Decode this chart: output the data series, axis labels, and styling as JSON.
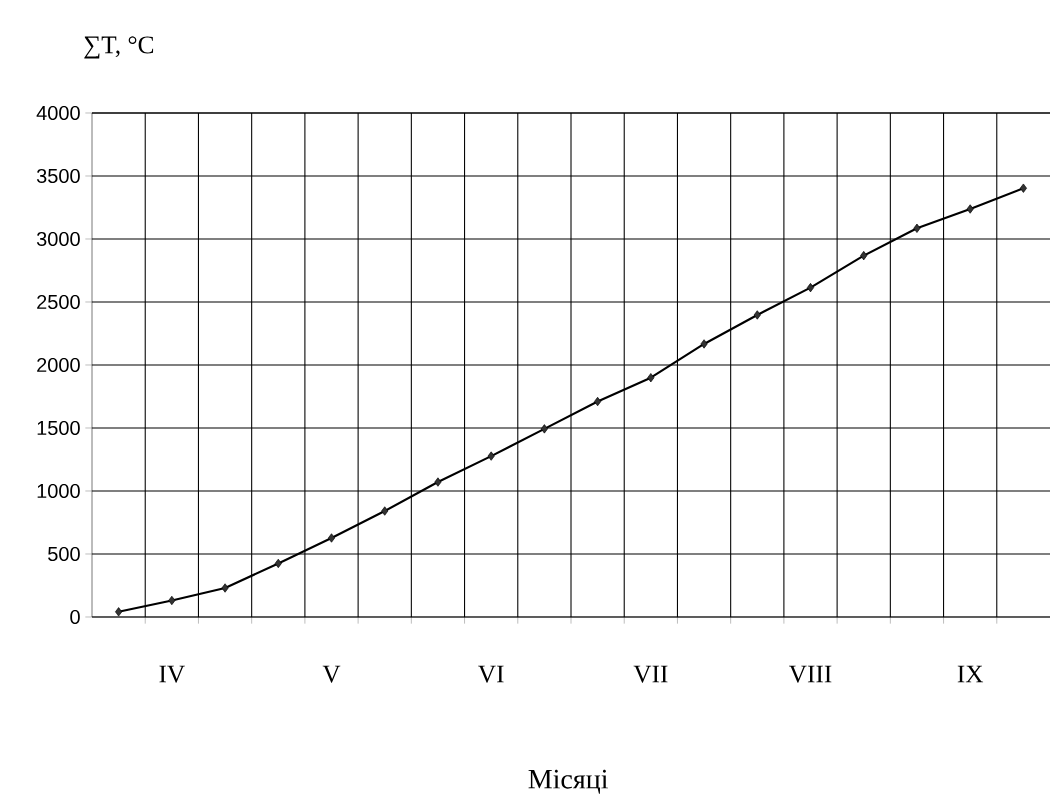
{
  "chart_data": {
    "type": "line",
    "ylabel": "∑T, °C",
    "xlabel": "Місяці",
    "categories": [
      null,
      "IV",
      null,
      null,
      "V",
      null,
      null,
      "VI",
      null,
      null,
      "VII",
      null,
      null,
      "VIII",
      null,
      null,
      "IX",
      null
    ],
    "values": [
      41,
      131,
      230,
      425,
      627,
      841,
      1071,
      1277,
      1493,
      1710,
      1899,
      2167,
      2397,
      2614,
      2868,
      3085,
      3238,
      3403
    ],
    "color": "#000000",
    "marker": "diamond",
    "line_style": "solid",
    "grid": true,
    "ylim": [
      0,
      4000
    ],
    "yticks": [
      0,
      500,
      1000,
      1500,
      2000,
      2500,
      3000,
      3500,
      4000
    ]
  }
}
